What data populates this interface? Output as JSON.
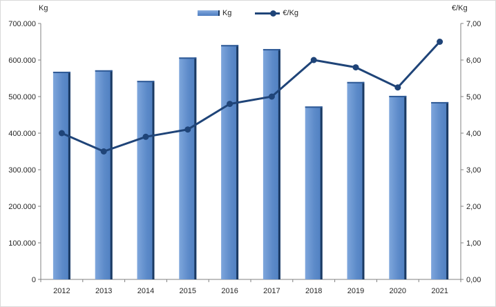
{
  "legend": {
    "kg_label": "Kg",
    "eur_label": "€/Kg"
  },
  "axes": {
    "left_title": "Kg",
    "right_title": "€/Kg",
    "left_tick_labels": [
      "0",
      "100.000",
      "200.000",
      "300.000",
      "400.000",
      "500.000",
      "600.000",
      "700.000"
    ],
    "right_tick_labels": [
      "0,00",
      "1,00",
      "2,00",
      "3,00",
      "4,00",
      "5,00",
      "6,00",
      "7,00"
    ]
  },
  "chart_data": {
    "type": "combo",
    "categories": [
      "2012",
      "2013",
      "2014",
      "2015",
      "2016",
      "2017",
      "2018",
      "2019",
      "2020",
      "2021"
    ],
    "series": [
      {
        "name": "Kg",
        "type": "bar",
        "axis": "left",
        "values": [
          568000,
          572000,
          543000,
          607000,
          641000,
          630000,
          473000,
          540000,
          502000,
          485000
        ]
      },
      {
        "name": "€/Kg",
        "type": "line",
        "axis": "right",
        "values": [
          4.0,
          3.5,
          3.9,
          4.1,
          4.8,
          5.0,
          6.0,
          5.8,
          5.25,
          6.5
        ]
      }
    ],
    "left_axis": {
      "title": "Kg",
      "min": 0,
      "max": 700000,
      "step": 100000
    },
    "right_axis": {
      "title": "€/Kg",
      "min": 0,
      "max": 7,
      "step": 1
    },
    "grid": false,
    "legend_position": "top-center",
    "colors": {
      "bar_highlight": "#7ea6dc",
      "bar_fill": "#5c8ac9",
      "bar_fill_dark": "#4e7ebf",
      "bar_edge": "#1b3a63",
      "bar_top": "#2f5a96",
      "line": "#1f4478",
      "axis": "#808080",
      "text": "#262626"
    }
  }
}
